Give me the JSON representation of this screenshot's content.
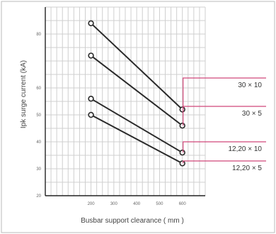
{
  "chart_data": {
    "type": "line",
    "xlabel": "Busbar support clearance ( mm )",
    "ylabel": "Ipk surge current (kA)",
    "xlim": [
      0,
      700
    ],
    "ylim": [
      20,
      90
    ],
    "x_ticks": [
      "200",
      "300",
      "400",
      "500",
      "600"
    ],
    "y_ticks": [
      "20",
      "30",
      "40",
      "50",
      "60",
      "80"
    ],
    "grid": true,
    "series": [
      {
        "name": "30 × 10",
        "x": [
          200,
          600
        ],
        "y": [
          84,
          52
        ]
      },
      {
        "name": "30 × 5",
        "x": [
          200,
          600
        ],
        "y": [
          72,
          46
        ]
      },
      {
        "name": "12,20 × 10",
        "x": [
          200,
          600
        ],
        "y": [
          56,
          36
        ]
      },
      {
        "name": "12,20 × 5",
        "x": [
          200,
          600
        ],
        "y": [
          50,
          32
        ]
      }
    ],
    "colors": {
      "lines": "#2a2a2a",
      "grid": "#cfcfcf",
      "axes": "#222222",
      "labels": "#d1477a"
    }
  }
}
